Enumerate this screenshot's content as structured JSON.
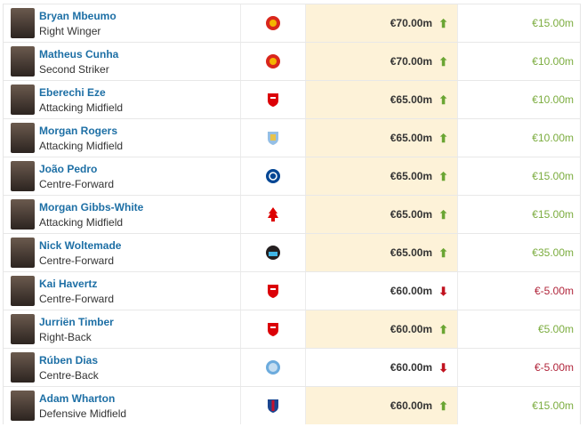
{
  "colors": {
    "highlight": "#fdf2d8",
    "name_link": "#1d6fa5",
    "up": "#6aa533",
    "down": "#c1121f"
  },
  "rows": [
    {
      "name": "Bryan Mbeumo",
      "position": "Right Winger",
      "club_icon": "man-utd-crest-icon",
      "market_value": "€70.00m",
      "trend": "up",
      "change": "€15.00m",
      "highlighted": true
    },
    {
      "name": "Matheus Cunha",
      "position": "Second Striker",
      "club_icon": "man-utd-crest-icon",
      "market_value": "€70.00m",
      "trend": "up",
      "change": "€10.00m",
      "highlighted": true
    },
    {
      "name": "Eberechi Eze",
      "position": "Attacking Midfield",
      "club_icon": "arsenal-crest-icon",
      "market_value": "€65.00m",
      "trend": "up",
      "change": "€10.00m",
      "highlighted": true
    },
    {
      "name": "Morgan Rogers",
      "position": "Attacking Midfield",
      "club_icon": "aston-villa-crest-icon",
      "market_value": "€65.00m",
      "trend": "up",
      "change": "€10.00m",
      "highlighted": true
    },
    {
      "name": "João Pedro",
      "position": "Centre-Forward",
      "club_icon": "chelsea-crest-icon",
      "market_value": "€65.00m",
      "trend": "up",
      "change": "€15.00m",
      "highlighted": true
    },
    {
      "name": "Morgan Gibbs-White",
      "position": "Attacking Midfield",
      "club_icon": "nottingham-forest-crest-icon",
      "market_value": "€65.00m",
      "trend": "up",
      "change": "€15.00m",
      "highlighted": true
    },
    {
      "name": "Nick Woltemade",
      "position": "Centre-Forward",
      "club_icon": "newcastle-crest-icon",
      "market_value": "€65.00m",
      "trend": "up",
      "change": "€35.00m",
      "highlighted": true
    },
    {
      "name": "Kai Havertz",
      "position": "Centre-Forward",
      "club_icon": "arsenal-crest-icon",
      "market_value": "€60.00m",
      "trend": "down",
      "change": "€-5.00m",
      "highlighted": false
    },
    {
      "name": "Jurriën Timber",
      "position": "Right-Back",
      "club_icon": "arsenal-crest-icon",
      "market_value": "€60.00m",
      "trend": "up",
      "change": "€5.00m",
      "highlighted": true
    },
    {
      "name": "Rúben Dias",
      "position": "Centre-Back",
      "club_icon": "man-city-crest-icon",
      "market_value": "€60.00m",
      "trend": "down",
      "change": "€-5.00m",
      "highlighted": false
    },
    {
      "name": "Adam Wharton",
      "position": "Defensive Midfield",
      "club_icon": "crystal-palace-crest-icon",
      "market_value": "€60.00m",
      "trend": "up",
      "change": "€15.00m",
      "highlighted": true
    }
  ]
}
